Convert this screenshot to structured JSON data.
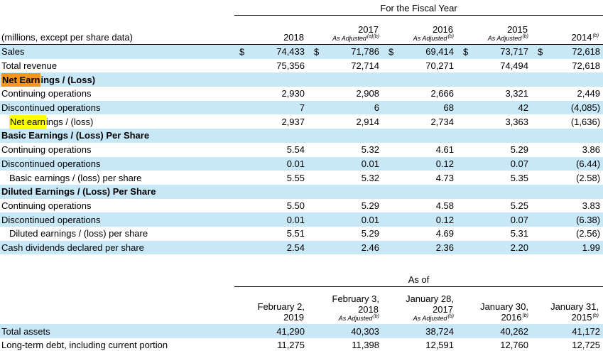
{
  "colors": {
    "row_shade": "#c8e8f8",
    "highlight_current": "#f7941d",
    "highlight_match": "#ffff00",
    "rule": "#000000"
  },
  "fiscal_table": {
    "group_header": "For the Fiscal Year",
    "corner_label": "(millions, except per share data)",
    "columns": [
      {
        "year": "2018",
        "year_sup": "",
        "sub": "",
        "sub_sup": ""
      },
      {
        "year": "2017",
        "year_sup": "",
        "sub": "As Adjusted",
        "sub_sup": "(a)(b)"
      },
      {
        "year": "2016",
        "year_sup": "",
        "sub": "As Adjusted",
        "sub_sup": "(b)"
      },
      {
        "year": "2015",
        "year_sup": "",
        "sub": "As Adjusted",
        "sub_sup": "(b)"
      },
      {
        "year": "2014",
        "year_sup": "(b)",
        "sub": "",
        "sub_sup": ""
      }
    ],
    "rows": [
      {
        "label": "Sales",
        "style": "",
        "shaded": true,
        "dollar": true,
        "values": [
          "74,433",
          "71,786",
          "69,414",
          "73,717",
          "72,618"
        ]
      },
      {
        "label": "Total revenue",
        "style": "",
        "shaded": false,
        "values": [
          "75,356",
          "72,714",
          "70,271",
          "74,494",
          "72,618"
        ]
      },
      {
        "label": "Net Earnings / (Loss)",
        "style": "section",
        "shaded": true,
        "hl": {
          "match": "Net Earn",
          "type": "current"
        },
        "values": []
      },
      {
        "label": "Continuing operations",
        "style": "",
        "shaded": false,
        "values": [
          "2,930",
          "2,908",
          "2,666",
          "3,321",
          "2,449"
        ]
      },
      {
        "label": "Discontinued operations",
        "style": "",
        "shaded": true,
        "values": [
          "7",
          "6",
          "68",
          "42",
          "(4,085)"
        ]
      },
      {
        "label": "Net earnings / (loss)",
        "style": "indent",
        "shaded": false,
        "hl": {
          "match": "Net earn",
          "type": "match"
        },
        "values": [
          "2,937",
          "2,914",
          "2,734",
          "3,363",
          "(1,636)"
        ]
      },
      {
        "label": "Basic Earnings / (Loss) Per Share",
        "style": "section",
        "shaded": true,
        "values": []
      },
      {
        "label": "Continuing operations",
        "style": "",
        "shaded": false,
        "values": [
          "5.54",
          "5.32",
          "4.61",
          "5.29",
          "3.86"
        ]
      },
      {
        "label": "Discontinued operations",
        "style": "",
        "shaded": true,
        "values": [
          "0.01",
          "0.01",
          "0.12",
          "0.07",
          "(6.44)"
        ]
      },
      {
        "label": "Basic earnings / (loss) per share",
        "style": "indent",
        "shaded": false,
        "values": [
          "5.55",
          "5.32",
          "4.73",
          "5.35",
          "(2.58)"
        ]
      },
      {
        "label": "Diluted Earnings / (Loss) Per Share",
        "style": "section",
        "shaded": true,
        "values": []
      },
      {
        "label": "Continuing operations",
        "style": "",
        "shaded": false,
        "values": [
          "5.50",
          "5.29",
          "4.58",
          "5.25",
          "3.83"
        ]
      },
      {
        "label": "Discontinued operations",
        "style": "",
        "shaded": true,
        "values": [
          "0.01",
          "0.01",
          "0.12",
          "0.07",
          "(6.38)"
        ]
      },
      {
        "label": "Diluted earnings / (loss) per share",
        "style": "indent",
        "shaded": false,
        "values": [
          "5.51",
          "5.29",
          "4.69",
          "5.31",
          "(2.56)"
        ]
      },
      {
        "label": "Cash dividends declared per share",
        "style": "",
        "shaded": true,
        "values": [
          "2.54",
          "2.46",
          "2.36",
          "2.20",
          "1.99"
        ]
      }
    ]
  },
  "as_of_table": {
    "group_header": "As of",
    "columns": [
      {
        "line1": "February 2,",
        "year": "2019",
        "year_sup": "",
        "sub": "",
        "sub_sup": ""
      },
      {
        "line1": "February 3,",
        "year": "2018",
        "year_sup": "",
        "sub": "As Adjusted",
        "sub_sup": "(b)"
      },
      {
        "line1": "January 28,",
        "year": "2017",
        "year_sup": "",
        "sub": "As Adjusted",
        "sub_sup": "(b)"
      },
      {
        "line1": "January 30,",
        "year": "2016",
        "year_sup": "(b)",
        "sub": "",
        "sub_sup": ""
      },
      {
        "line1": "January 31,",
        "year": "2015",
        "year_sup": "(b)",
        "sub": "",
        "sub_sup": ""
      }
    ],
    "rows": [
      {
        "label": "Total assets",
        "style": "",
        "shaded": true,
        "values": [
          "41,290",
          "40,303",
          "38,724",
          "40,262",
          "41,172"
        ]
      },
      {
        "label": "Long-term debt, including current portion",
        "style": "",
        "shaded": false,
        "values": [
          "11,275",
          "11,398",
          "12,591",
          "12,760",
          "12,725"
        ]
      }
    ]
  }
}
